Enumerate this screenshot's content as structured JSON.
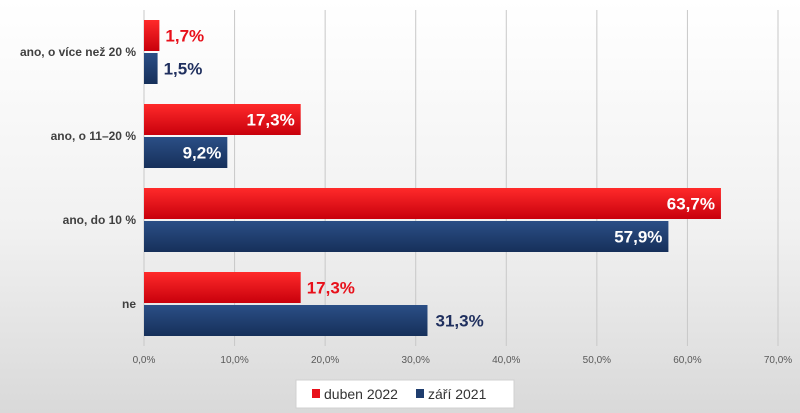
{
  "chart_data": {
    "type": "bar",
    "orientation": "horizontal",
    "categories": [
      "ano, o více než 20 %",
      "ano, o 11–20 %",
      "ano, do 10 %",
      "ne"
    ],
    "series": [
      {
        "name": "duben 2022",
        "values": [
          1.7,
          17.3,
          63.7,
          17.3
        ],
        "labels": [
          "1,7%",
          "17,3%",
          "63,7%",
          "17,3%"
        ]
      },
      {
        "name": "září 2021",
        "values": [
          1.5,
          9.2,
          57.9,
          31.3
        ],
        "labels": [
          "1,5%",
          "9,2%",
          "57,9%",
          "31,3%"
        ]
      }
    ],
    "xlim": [
      0,
      70
    ],
    "xticks": [
      0,
      10,
      20,
      30,
      40,
      50,
      60,
      70
    ],
    "xtick_labels": [
      "0,0%",
      "10,0%",
      "20,0%",
      "30,0%",
      "40,0%",
      "50,0%",
      "60,0%",
      "70,0%"
    ],
    "grid": true,
    "legend": "bottom",
    "title": "",
    "xlabel": "",
    "ylabel": ""
  },
  "colors": {
    "duben_2022": "#e8101a",
    "zari_2021": "#1f3d6e",
    "label_red": "#e8101a",
    "label_navy": "#1f2f5e",
    "gridline": "#c8c8c8"
  }
}
